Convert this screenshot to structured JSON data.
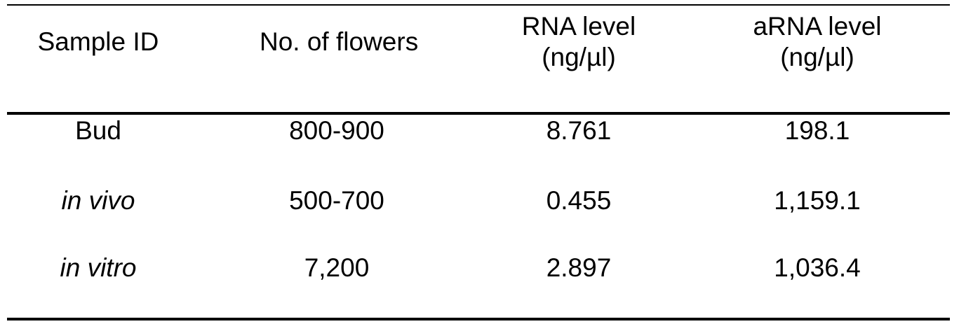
{
  "table": {
    "headers": [
      {
        "line1": "Sample ID",
        "line2": ""
      },
      {
        "line1": "No. of flowers",
        "line2": ""
      },
      {
        "line1": "RNA level",
        "line2": "(ng/µl)"
      },
      {
        "line1": "aRNA level",
        "line2": "(ng/µl)"
      }
    ],
    "rows": [
      {
        "sample_id": "Bud",
        "flowers": "800-900",
        "rna": "8.761",
        "arna": "198.1"
      },
      {
        "sample_id": "in vivo",
        "flowers": "500-700",
        "rna": "0.455",
        "arna": "1,159.1"
      },
      {
        "sample_id": "in vitro",
        "flowers": "7,200",
        "rna": "2.897",
        "arna": "1,036.4"
      }
    ]
  }
}
